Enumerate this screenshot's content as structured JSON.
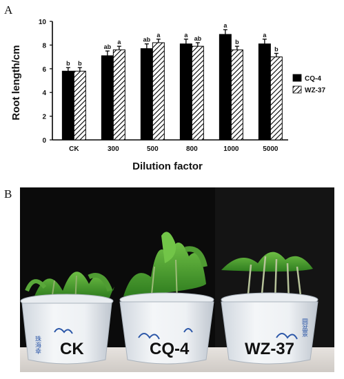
{
  "panel_a_label": "A",
  "panel_b_label": "B",
  "chart_data": {
    "type": "bar",
    "title": "",
    "xlabel": "Dilution factor",
    "ylabel": "Root length/cm",
    "ylim": [
      0,
      10
    ],
    "yticks": [
      "0",
      "2",
      "4",
      "6",
      "8",
      "10"
    ],
    "categories": [
      "CK",
      "300",
      "500",
      "800",
      "1000",
      "5000"
    ],
    "series": [
      {
        "name": "CQ-4",
        "fill": "#000000",
        "values": [
          5.8,
          7.1,
          7.7,
          8.1,
          8.9,
          8.1
        ],
        "errors": [
          0.3,
          0.4,
          0.4,
          0.4,
          0.4,
          0.4
        ],
        "letters": [
          "b",
          "ab",
          "ab",
          "a",
          "a",
          "a"
        ]
      },
      {
        "name": "WZ-37",
        "fill": "hatched",
        "values": [
          5.8,
          7.6,
          8.2,
          7.9,
          7.6,
          7.0
        ],
        "errors": [
          0.3,
          0.3,
          0.3,
          0.3,
          0.3,
          0.3
        ],
        "letters": [
          "b",
          "a",
          "a",
          "ab",
          "b",
          "b"
        ]
      }
    ],
    "legend_position": "right"
  },
  "photo": {
    "pot_labels": [
      "CK",
      "CQ-4",
      "WZ-37"
    ]
  }
}
